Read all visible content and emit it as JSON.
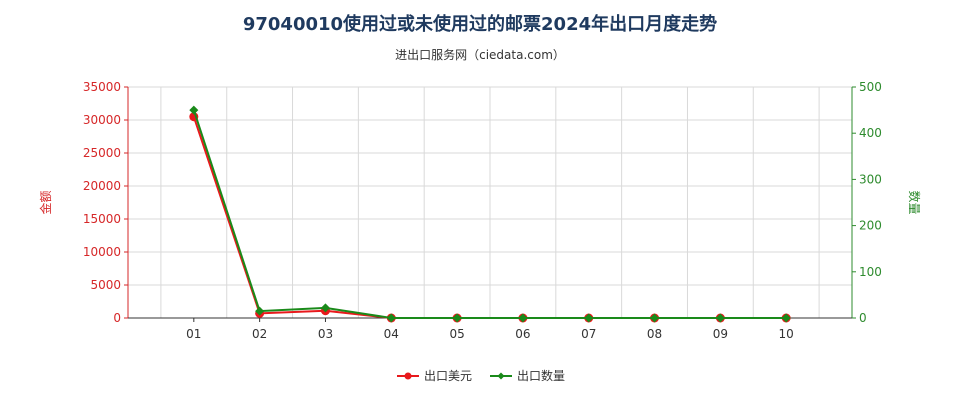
{
  "chart_data": {
    "type": "line",
    "title": "97040010使用过或未使用过的邮票2024年出口月度走势",
    "subtitle": "进出口服务网（ciedata.com）",
    "categories": [
      "01",
      "02",
      "03",
      "04",
      "05",
      "06",
      "07",
      "08",
      "09",
      "10"
    ],
    "y_left": {
      "label": "金额",
      "min": 0,
      "max": 35000,
      "ticks": [
        0,
        5000,
        10000,
        15000,
        20000,
        25000,
        30000,
        35000
      ],
      "color": "#d62728"
    },
    "y_right": {
      "label": "数量",
      "min": 0,
      "max": 500,
      "ticks": [
        0,
        100,
        200,
        300,
        400,
        500
      ],
      "color": "#2e8b2e"
    },
    "series": [
      {
        "name": "出口美元",
        "axis": "left",
        "color": "#e8191c",
        "marker": "circle",
        "values": [
          30500,
          700,
          1100,
          0,
          0,
          0,
          0,
          0,
          0,
          0
        ]
      },
      {
        "name": "出口数量",
        "axis": "right",
        "color": "#1a8a1a",
        "marker": "diamond",
        "values": [
          450,
          15,
          22,
          0,
          0,
          0,
          0,
          0,
          0,
          0
        ]
      }
    ],
    "grid": true,
    "legend": "bottom-center"
  }
}
